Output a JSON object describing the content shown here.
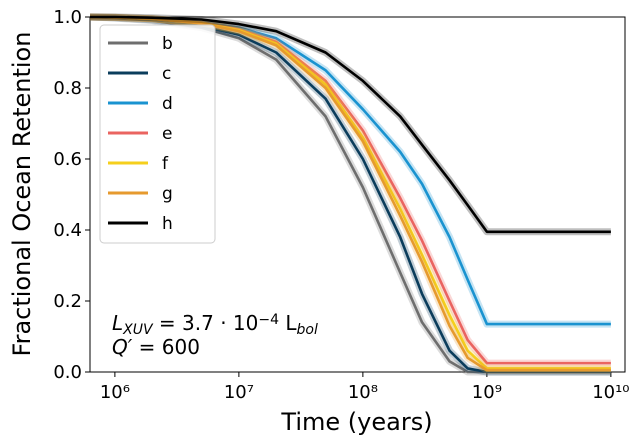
{
  "chart_data": {
    "type": "line",
    "xlabel": "Time (years)",
    "ylabel": "Fractional Ocean Retention",
    "xscale": "log",
    "xlim": [
      630000,
      13000000000
    ],
    "ylim": [
      0,
      1
    ],
    "xticks": [
      {
        "value": 1000000,
        "label": "10⁶"
      },
      {
        "value": 10000000,
        "label": "10⁷"
      },
      {
        "value": 100000000,
        "label": "10⁸"
      },
      {
        "value": 1000000000,
        "label": "10⁹"
      },
      {
        "value": 10000000000,
        "label": "10¹⁰"
      }
    ],
    "yticks": [
      {
        "value": 0,
        "label": "0.0"
      },
      0.2,
      0.4,
      0.6,
      0.8,
      {
        "value": 1,
        "label": "1.0"
      }
    ],
    "legend": "upper left",
    "x": [
      630000,
      1000000,
      2000000,
      5000000,
      10000000,
      20000000,
      50000000,
      100000000,
      200000000,
      300000000,
      500000000,
      700000000,
      1000000000,
      2000000000,
      5000000000,
      10000000000
    ],
    "series": [
      {
        "name": "b",
        "color": "#6e6e6e",
        "values": [
          1.0,
          0.997,
          0.99,
          0.97,
          0.94,
          0.88,
          0.72,
          0.52,
          0.28,
          0.14,
          0.03,
          0.0,
          0.0,
          0.0,
          0.0,
          0.0
        ]
      },
      {
        "name": "c",
        "color": "#0b3d5c",
        "values": [
          1.0,
          0.998,
          0.992,
          0.975,
          0.95,
          0.9,
          0.77,
          0.6,
          0.38,
          0.22,
          0.06,
          0.01,
          0.0,
          0.0,
          0.0,
          0.0
        ]
      },
      {
        "name": "d",
        "color": "#1a93d0",
        "values": [
          1.0,
          0.999,
          0.995,
          0.985,
          0.97,
          0.94,
          0.85,
          0.74,
          0.62,
          0.53,
          0.38,
          0.26,
          0.135,
          0.135,
          0.135,
          0.135
        ]
      },
      {
        "name": "e",
        "color": "#ea6460",
        "values": [
          1.0,
          0.999,
          0.995,
          0.984,
          0.965,
          0.93,
          0.82,
          0.68,
          0.49,
          0.37,
          0.2,
          0.09,
          0.025,
          0.025,
          0.025,
          0.025
        ]
      },
      {
        "name": "f",
        "color": "#f5cf1c",
        "values": [
          1.0,
          0.999,
          0.995,
          0.983,
          0.963,
          0.925,
          0.81,
          0.66,
          0.46,
          0.33,
          0.16,
          0.06,
          0.01,
          0.01,
          0.01,
          0.01
        ]
      },
      {
        "name": "g",
        "color": "#e69a2e",
        "values": [
          1.0,
          0.999,
          0.995,
          0.982,
          0.96,
          0.92,
          0.8,
          0.65,
          0.44,
          0.31,
          0.13,
          0.04,
          0.005,
          0.005,
          0.005,
          0.005
        ]
      },
      {
        "name": "h",
        "color": "#000000",
        "values": [
          1.0,
          1.0,
          0.998,
          0.993,
          0.98,
          0.96,
          0.9,
          0.82,
          0.72,
          0.64,
          0.54,
          0.47,
          0.395,
          0.395,
          0.395,
          0.395
        ]
      }
    ],
    "annotations": [
      [
        {
          "text": "L",
          "style": "italic"
        },
        {
          "text": "XUV",
          "style": "sub"
        },
        {
          "text": " = 3.7 · 10",
          "style": "normal"
        },
        {
          "text": "−4",
          "style": "sup"
        },
        {
          "text": " L",
          "style": "normal"
        },
        {
          "text": "bol",
          "style": "sub"
        }
      ],
      [
        {
          "text": "Q′",
          "style": "italic"
        },
        {
          "text": " = 600",
          "style": "normal"
        }
      ]
    ]
  }
}
